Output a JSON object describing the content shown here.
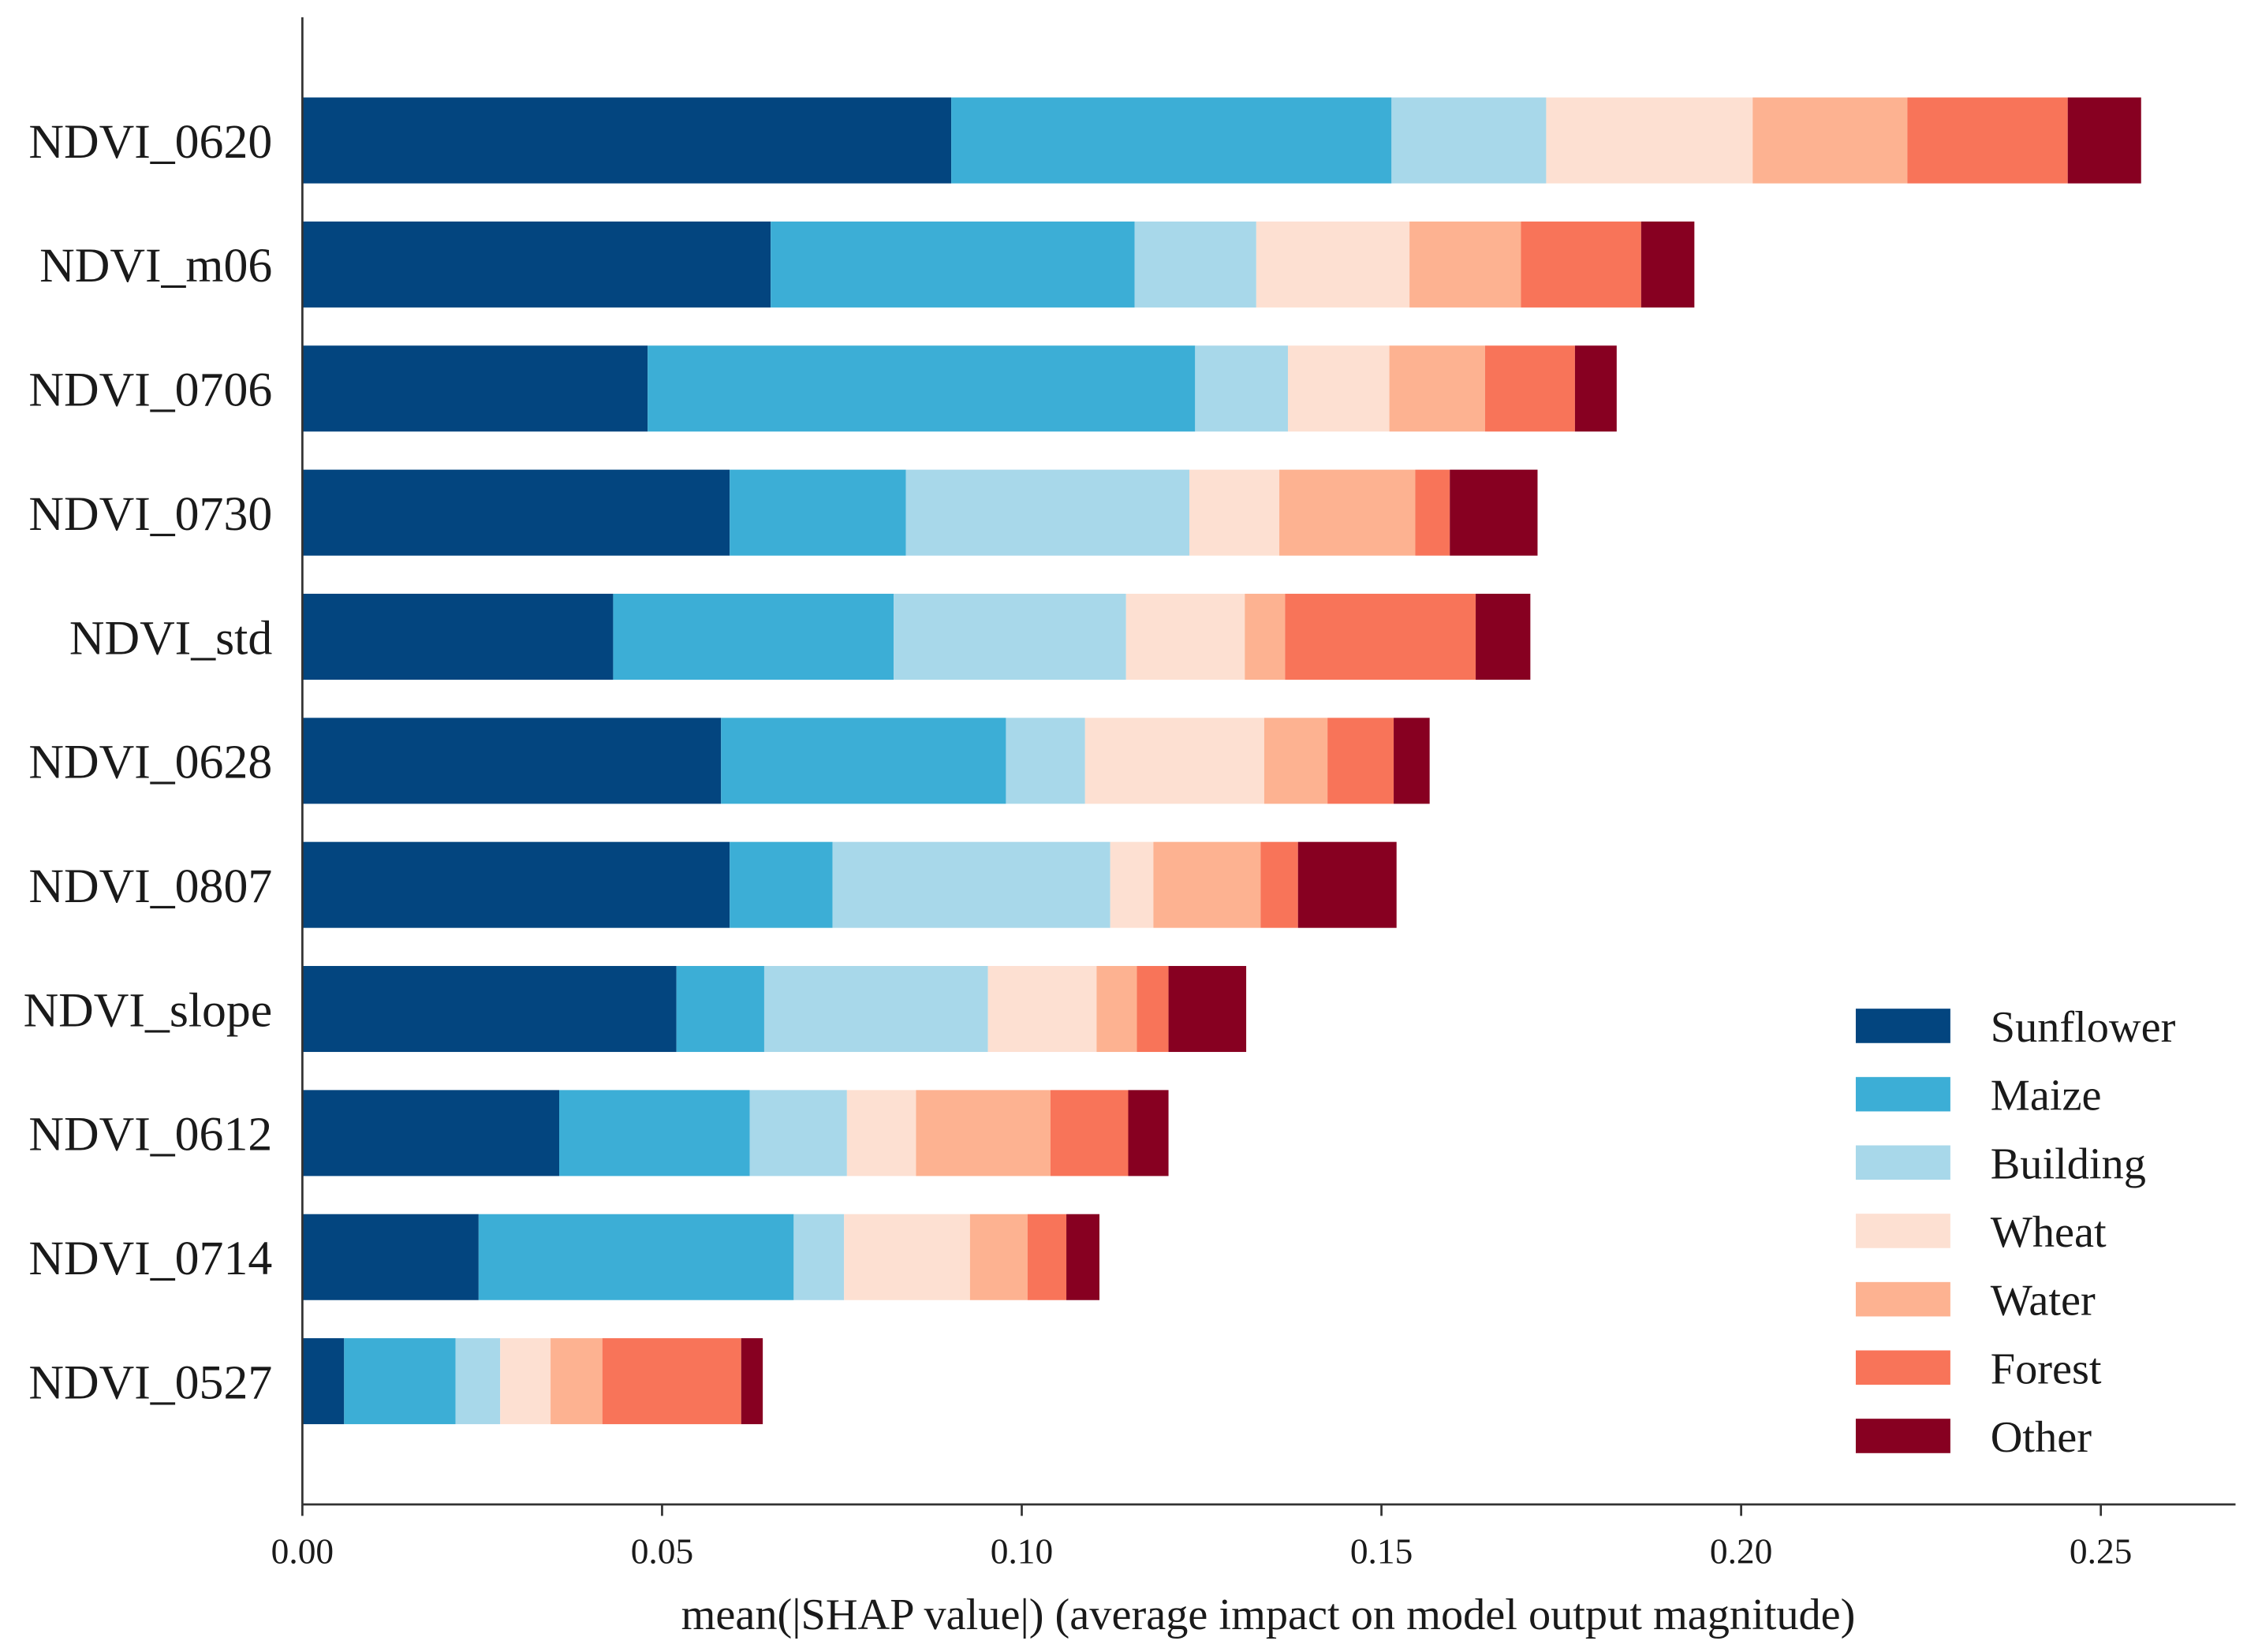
{
  "chart_data": {
    "type": "bar",
    "orientation": "horizontal",
    "stacked": true,
    "title": "",
    "xlabel": "mean(|SHAP value|) (average impact on model output magnitude)",
    "ylabel": "",
    "xlim": [
      0,
      0.268
    ],
    "xticks": [
      0.0,
      0.05,
      0.1,
      0.15,
      0.2,
      0.25
    ],
    "xtick_labels": [
      "0.00",
      "0.05",
      "0.10",
      "0.15",
      "0.20",
      "0.25"
    ],
    "grid": false,
    "legend_position": "bottom-right",
    "categories": [
      "NDVI_0620",
      "NDVI_m06",
      "NDVI_0706",
      "NDVI_0730",
      "NDVI_std",
      "NDVI_0628",
      "NDVI_0807",
      "NDVI_slope",
      "NDVI_0612",
      "NDVI_0714",
      "NDVI_0527"
    ],
    "series": [
      {
        "name": "Sunflower",
        "color": "#03457f",
        "values": [
          0.0902,
          0.0651,
          0.048,
          0.0594,
          0.0432,
          0.0582,
          0.0594,
          0.052,
          0.0357,
          0.0245,
          0.0058
        ]
      },
      {
        "name": "Maize",
        "color": "#3caed6",
        "values": [
          0.0612,
          0.0506,
          0.0761,
          0.0245,
          0.039,
          0.0396,
          0.0143,
          0.0122,
          0.0265,
          0.0438,
          0.0155
        ]
      },
      {
        "name": "Building",
        "color": "#a8d8ea",
        "values": [
          0.0215,
          0.0169,
          0.0129,
          0.0394,
          0.0323,
          0.011,
          0.0386,
          0.0311,
          0.0135,
          0.007,
          0.0062
        ]
      },
      {
        "name": "Wheat",
        "color": "#fde0d2",
        "values": [
          0.0287,
          0.0213,
          0.0141,
          0.0125,
          0.0165,
          0.0249,
          0.006,
          0.0151,
          0.0096,
          0.0175,
          0.007
        ]
      },
      {
        "name": "Water",
        "color": "#fdb291",
        "values": [
          0.0215,
          0.0155,
          0.0133,
          0.0189,
          0.0056,
          0.0088,
          0.0149,
          0.0056,
          0.0187,
          0.008,
          0.0072
        ]
      },
      {
        "name": "Forest",
        "color": "#f87459",
        "values": [
          0.0223,
          0.0167,
          0.0125,
          0.0048,
          0.0265,
          0.0092,
          0.0052,
          0.0044,
          0.0108,
          0.0054,
          0.0193
        ]
      },
      {
        "name": "Other",
        "color": "#870021",
        "values": [
          0.0102,
          0.0074,
          0.0058,
          0.0122,
          0.0076,
          0.005,
          0.0137,
          0.0108,
          0.0056,
          0.0046,
          0.003
        ]
      }
    ]
  }
}
